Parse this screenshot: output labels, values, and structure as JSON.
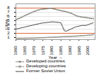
{
  "chart_data": {
    "type": "line",
    "xlabel": "Year",
    "ylabel": "Litres",
    "x": [
      1960,
      1961,
      1962,
      1963,
      1964,
      1965,
      1966,
      1967,
      1968,
      1969,
      1970,
      1971,
      1972,
      1973,
      1974,
      1975,
      1976,
      1977,
      1978,
      1979,
      1980,
      1981,
      1982,
      1983,
      1984,
      1985,
      1986,
      1987,
      1988,
      1989,
      1990,
      1991,
      1992,
      1993,
      1994,
      1995,
      1996,
      1997,
      1998,
      1999,
      2000,
      2001,
      2002,
      2003
    ],
    "series": [
      {
        "name": "Developed countries",
        "color": "#888880",
        "marker": "circle",
        "values": [
          5.2,
          5.4,
          5.6,
          5.8,
          6.0,
          6.2,
          6.4,
          6.6,
          6.8,
          7.0,
          7.15,
          7.3,
          7.5,
          7.6,
          7.7,
          7.75,
          7.8,
          7.85,
          7.9,
          7.95,
          7.9,
          7.8,
          7.7,
          7.6,
          7.5,
          7.4,
          7.3,
          7.2,
          7.1,
          7.0,
          6.85,
          6.7,
          6.5,
          6.3,
          6.1,
          6.0,
          5.9,
          5.85,
          5.8,
          5.75,
          5.65,
          5.6,
          5.55,
          5.5
        ]
      },
      {
        "name": "Developing countries",
        "color": "#999990",
        "marker": "square",
        "values": [
          0.75,
          0.76,
          0.77,
          0.78,
          0.79,
          0.8,
          0.81,
          0.82,
          0.83,
          0.84,
          0.86,
          0.88,
          0.9,
          0.92,
          0.94,
          0.96,
          0.98,
          1.0,
          1.02,
          1.04,
          1.06,
          1.08,
          1.1,
          1.12,
          1.14,
          1.16,
          1.18,
          1.2,
          1.22,
          1.24,
          1.26,
          1.28,
          1.3,
          1.32,
          1.35,
          1.38,
          1.41,
          1.44,
          1.47,
          1.5,
          1.54,
          1.58,
          1.62,
          1.67
        ]
      },
      {
        "name": "Former Soviet Union",
        "color": "#444440",
        "values": [
          3.0,
          3.1,
          3.2,
          3.3,
          3.4,
          3.5,
          3.6,
          3.7,
          3.8,
          3.9,
          4.0,
          4.1,
          4.2,
          4.3,
          4.4,
          4.45,
          4.5,
          4.55,
          4.6,
          4.65,
          4.7,
          4.7,
          4.65,
          4.6,
          4.55,
          4.5,
          3.5,
          2.6,
          2.5,
          2.7,
          2.9,
          3.1,
          3.3,
          3.5,
          3.6,
          3.7,
          3.8,
          3.9,
          3.85,
          3.9,
          4.0,
          4.2,
          4.35,
          4.5
        ]
      }
    ],
    "hlines": {
      "values": [
        2.0,
        8.0
      ],
      "color": "#d9693a"
    },
    "xlim": [
      1960,
      2004
    ],
    "ylim": [
      0.5,
      9.0
    ],
    "xticks": [
      1960,
      1965,
      1970,
      1975,
      1980,
      1985,
      1990,
      1995,
      2000
    ],
    "yticks": [
      1,
      2,
      3,
      4,
      5,
      6,
      7,
      8
    ],
    "grid": true,
    "legend": "bottom"
  }
}
